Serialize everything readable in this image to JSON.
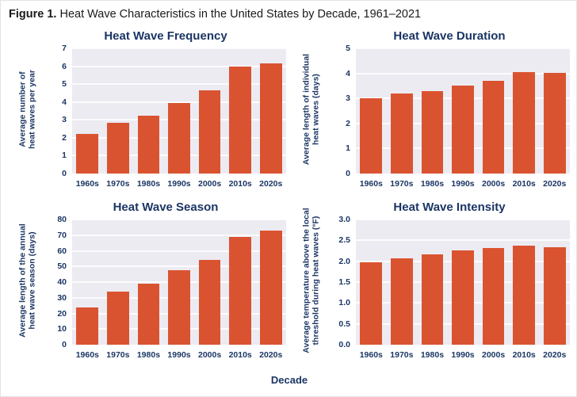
{
  "figure": {
    "label": "Figure 1.",
    "title": " Heat Wave Characteristics in the United States by Decade, 1961–2021"
  },
  "x_axis_title": "Decade",
  "categories": [
    "1960s",
    "1970s",
    "1980s",
    "1990s",
    "2000s",
    "2010s",
    "2020s"
  ],
  "colors": {
    "bar": "#da5330",
    "navy": "#1b3664",
    "plot_background": "#ecebf2",
    "gridline": "#ffffff",
    "figure_title_text": "#1a1a1a"
  },
  "chart_data": [
    {
      "type": "bar",
      "title": "Heat Wave Frequency",
      "ylabel": "Average number of heat waves per year",
      "ylabel_lines": [
        "Average number of",
        "heat waves per year"
      ],
      "xlabel": "Decade",
      "categories": [
        "1960s",
        "1970s",
        "1980s",
        "1990s",
        "2000s",
        "2010s",
        "2020s"
      ],
      "values": [
        2.2,
        2.85,
        3.25,
        3.95,
        4.65,
        6.0,
        6.15
      ],
      "ylim": [
        0,
        7
      ],
      "ytick_values": [
        0,
        1,
        2,
        3,
        4,
        5,
        6,
        7
      ],
      "ytick_labels": [
        "0",
        "1",
        "2",
        "3",
        "4",
        "5",
        "6",
        "7"
      ],
      "grid": true,
      "legend": "none"
    },
    {
      "type": "bar",
      "title": "Heat Wave Duration",
      "ylabel": "Average length of individual heat waves (days)",
      "ylabel_lines": [
        "Average length of individual",
        "heat waves (days)"
      ],
      "xlabel": "Decade",
      "categories": [
        "1960s",
        "1970s",
        "1980s",
        "1990s",
        "2000s",
        "2010s",
        "2020s"
      ],
      "values": [
        3.0,
        3.2,
        3.3,
        3.5,
        3.7,
        4.05,
        4.03
      ],
      "ylim": [
        0,
        5
      ],
      "ytick_values": [
        0,
        1,
        2,
        3,
        4,
        5
      ],
      "ytick_labels": [
        "0",
        "1",
        "2",
        "3",
        "4",
        "5"
      ],
      "grid": true,
      "legend": "none"
    },
    {
      "type": "bar",
      "title": "Heat Wave Season",
      "ylabel": "Average length of the annual heat wave season (days)",
      "ylabel_lines": [
        "Average length of the annual",
        "heat wave season (days)"
      ],
      "xlabel": "Decade",
      "categories": [
        "1960s",
        "1970s",
        "1980s",
        "1990s",
        "2000s",
        "2010s",
        "2020s"
      ],
      "values": [
        24,
        34,
        39,
        47.5,
        54,
        69,
        73
      ],
      "ylim": [
        0,
        80
      ],
      "ytick_values": [
        0,
        10,
        20,
        30,
        40,
        50,
        60,
        70,
        80
      ],
      "ytick_labels": [
        "0",
        "10",
        "20",
        "30",
        "40",
        "50",
        "60",
        "70",
        "80"
      ],
      "grid": true,
      "legend": "none"
    },
    {
      "type": "bar",
      "title": "Heat Wave Intensity",
      "ylabel": "Average temperature above the local threshold during heat waves (°F)",
      "ylabel_lines": [
        "Average temperature above the local",
        "threshold during heat waves (°F)"
      ],
      "xlabel": "Decade",
      "categories": [
        "1960s",
        "1970s",
        "1980s",
        "1990s",
        "2000s",
        "2010s",
        "2020s"
      ],
      "values": [
        1.97,
        2.07,
        2.17,
        2.26,
        2.31,
        2.37,
        2.34
      ],
      "ylim": [
        0,
        3
      ],
      "ytick_values": [
        0,
        0.5,
        1,
        1.5,
        2,
        2.5,
        3
      ],
      "ytick_labels": [
        "0.0",
        "0.5",
        "1.0",
        "1.5",
        "2.0",
        "2.5",
        "3.0"
      ],
      "grid": true,
      "legend": "none"
    }
  ]
}
